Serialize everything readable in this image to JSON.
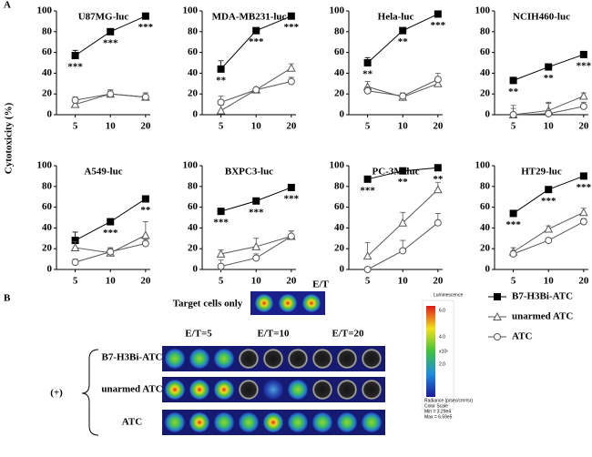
{
  "figure": {
    "panel_a": "A",
    "panel_b": "B",
    "y_label": "Cytotoxicity (%)",
    "x_label": "E/T"
  },
  "chart_data": [
    {
      "type": "line",
      "title": "U87MG-luc",
      "categories": [
        "5",
        "10",
        "20"
      ],
      "ylim": [
        0,
        100
      ],
      "yticks": [
        0,
        20,
        40,
        60,
        80,
        100
      ],
      "series": [
        {
          "name": "B7-H3Bi-ATC",
          "color": "#000000",
          "marker": "square",
          "values": [
            57,
            80,
            95
          ],
          "errors": [
            5,
            3,
            2
          ],
          "annotations": [
            "***",
            "***",
            "***"
          ]
        },
        {
          "name": "unarmed ATC",
          "color": "#555555",
          "marker": "triangle",
          "values": [
            10,
            20,
            17
          ],
          "errors": [
            3,
            4,
            4
          ]
        },
        {
          "name": "ATC",
          "color": "#555555",
          "marker": "circle",
          "values": [
            14,
            20,
            17
          ],
          "errors": [
            3,
            3,
            4
          ]
        }
      ]
    },
    {
      "type": "line",
      "title": "MDA-MB231-luc",
      "categories": [
        "5",
        "10",
        "20"
      ],
      "ylim": [
        0,
        100
      ],
      "yticks": [
        0,
        20,
        40,
        60,
        80,
        100
      ],
      "series": [
        {
          "color": "#000000",
          "marker": "square",
          "values": [
            44,
            81,
            95
          ],
          "errors": [
            8,
            2,
            2
          ],
          "annotations": [
            "**",
            "***",
            "***"
          ]
        },
        {
          "color": "#555555",
          "marker": "triangle",
          "values": [
            4,
            24,
            45
          ],
          "errors": [
            5,
            2,
            4
          ]
        },
        {
          "color": "#555555",
          "marker": "circle",
          "values": [
            12,
            24,
            32
          ],
          "errors": [
            6,
            2,
            4
          ]
        }
      ]
    },
    {
      "type": "line",
      "title": "Hela-luc",
      "categories": [
        "5",
        "10",
        "20"
      ],
      "ylim": [
        0,
        100
      ],
      "yticks": [
        0,
        20,
        40,
        60,
        80,
        100
      ],
      "series": [
        {
          "color": "#000000",
          "marker": "square",
          "values": [
            50,
            81,
            97
          ],
          "errors": [
            5,
            3,
            2
          ],
          "annotations": [
            "**",
            "**",
            "***"
          ]
        },
        {
          "color": "#555555",
          "marker": "triangle",
          "values": [
            27,
            17,
            30
          ],
          "errors": [
            5,
            3,
            6
          ]
        },
        {
          "color": "#555555",
          "marker": "circle",
          "values": [
            23,
            18,
            34
          ],
          "errors": [
            4,
            3,
            6
          ]
        }
      ]
    },
    {
      "type": "line",
      "title": "NCIH460-luc",
      "categories": [
        "5",
        "10",
        "20"
      ],
      "ylim": [
        0,
        100
      ],
      "yticks": [
        0,
        20,
        40,
        60,
        80,
        100
      ],
      "series": [
        {
          "color": "#000000",
          "marker": "square",
          "values": [
            33,
            46,
            58
          ],
          "errors": [
            2,
            2,
            2
          ],
          "annotations": [
            "**",
            "**",
            "***"
          ]
        },
        {
          "color": "#555555",
          "marker": "triangle",
          "values": [
            0,
            4,
            18
          ],
          "errors": [
            6,
            7,
            3
          ]
        },
        {
          "color": "#555555",
          "marker": "circle",
          "values": [
            0,
            1,
            8
          ],
          "errors": [
            9,
            11,
            4
          ]
        }
      ]
    },
    {
      "type": "line",
      "title": "A549-luc",
      "categories": [
        "5",
        "10",
        "20"
      ],
      "ylim": [
        0,
        100
      ],
      "yticks": [
        0,
        20,
        40,
        60,
        80,
        100
      ],
      "series": [
        {
          "color": "#000000",
          "marker": "square",
          "values": [
            28,
            46,
            68
          ],
          "errors": [
            8,
            2,
            2
          ],
          "annotations": [
            null,
            "***",
            "**"
          ]
        },
        {
          "color": "#555555",
          "marker": "triangle",
          "values": [
            21,
            16,
            33
          ],
          "errors": [
            6,
            4,
            13
          ]
        },
        {
          "color": "#555555",
          "marker": "circle",
          "values": [
            7,
            17,
            25
          ],
          "errors": [
            3,
            4,
            4
          ]
        }
      ]
    },
    {
      "type": "line",
      "title": "BXPC3-luc",
      "categories": [
        "5",
        "10",
        "20"
      ],
      "ylim": [
        0,
        100
      ],
      "yticks": [
        0,
        20,
        40,
        60,
        80,
        100
      ],
      "series": [
        {
          "color": "#000000",
          "marker": "square",
          "values": [
            56,
            66,
            79
          ],
          "errors": [
            2,
            2,
            2
          ],
          "annotations": [
            "***",
            "***",
            "***"
          ]
        },
        {
          "color": "#555555",
          "marker": "triangle",
          "values": [
            15,
            22,
            32
          ],
          "errors": [
            4,
            8,
            5
          ]
        },
        {
          "color": "#555555",
          "marker": "circle",
          "values": [
            3,
            11,
            32
          ],
          "errors": [
            6,
            4,
            5
          ]
        }
      ]
    },
    {
      "type": "line",
      "title": "PC-3M-luc",
      "categories": [
        "5",
        "10",
        "20"
      ],
      "ylim": [
        0,
        100
      ],
      "yticks": [
        0,
        20,
        40,
        60,
        80,
        100
      ],
      "series": [
        {
          "color": "#000000",
          "marker": "square",
          "values": [
            87,
            95,
            98
          ],
          "errors": [
            2,
            2,
            2
          ],
          "annotations": [
            "***",
            "**",
            "**"
          ]
        },
        {
          "color": "#555555",
          "marker": "triangle",
          "values": [
            13,
            45,
            77
          ],
          "errors": [
            13,
            10,
            7
          ]
        },
        {
          "color": "#555555",
          "marker": "circle",
          "values": [
            0,
            18,
            45
          ],
          "errors": [
            2,
            10,
            9
          ]
        }
      ]
    },
    {
      "type": "line",
      "title": "HT29-luc",
      "categories": [
        "5",
        "10",
        "20"
      ],
      "ylim": [
        0,
        100
      ],
      "yticks": [
        0,
        20,
        40,
        60,
        80,
        100
      ],
      "series": [
        {
          "color": "#000000",
          "marker": "square",
          "values": [
            54,
            77,
            90
          ],
          "errors": [
            2,
            2,
            2
          ],
          "annotations": [
            "***",
            "***",
            "***"
          ]
        },
        {
          "color": "#555555",
          "marker": "triangle",
          "values": [
            17,
            39,
            55
          ],
          "errors": [
            4,
            3,
            4
          ]
        },
        {
          "color": "#555555",
          "marker": "circle",
          "values": [
            15,
            28,
            46
          ],
          "errors": [
            3,
            2,
            3
          ]
        }
      ]
    }
  ],
  "panel_b": {
    "target_label": "Target cells only",
    "et_labels": [
      "E/T=5",
      "E/T=10",
      "E/T=20"
    ],
    "row_labels": [
      "B7-H3Bi-ATC",
      "unarmed ATC",
      "ATC"
    ],
    "group_label": "(+)",
    "colorbar": {
      "title": "Luminescence",
      "ticks": [
        "6.0",
        "4.0",
        "2.0"
      ],
      "unit": "x10⁵",
      "radiance": "Radiance (p/sec/cm²/sr)",
      "scale_min": "Min = 3.29e4",
      "scale_max": "Max = 6.59e5",
      "scale_title": "Color Scale"
    }
  }
}
